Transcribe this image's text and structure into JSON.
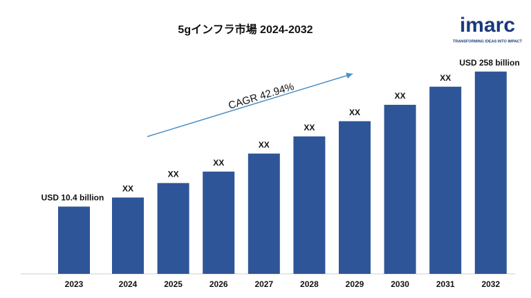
{
  "chart_data": {
    "type": "bar",
    "title": "5gインフラ市場 2024-2032",
    "categories": [
      "2023",
      "2024",
      "2025",
      "2026",
      "2027",
      "2028",
      "2029",
      "2030",
      "2031",
      "2032"
    ],
    "values": [
      10.4,
      12.9,
      18.2,
      23.9,
      36.7,
      55.2,
      79.2,
      117,
      180,
      258
    ],
    "value_labels": [
      "USD 10.4 billion",
      "XX",
      "XX",
      "XX",
      "XX",
      "XX",
      "XX",
      "XX",
      "XX",
      "USD 258 billion"
    ],
    "color": "#2e5597",
    "log_scale": true,
    "ylim": [
      2.1,
      400
    ],
    "annotation": "CAGR  42.94%"
  },
  "logo": {
    "name": "imarc",
    "tagline": "TRANSFORMING IDEAS INTO IMPACT"
  }
}
